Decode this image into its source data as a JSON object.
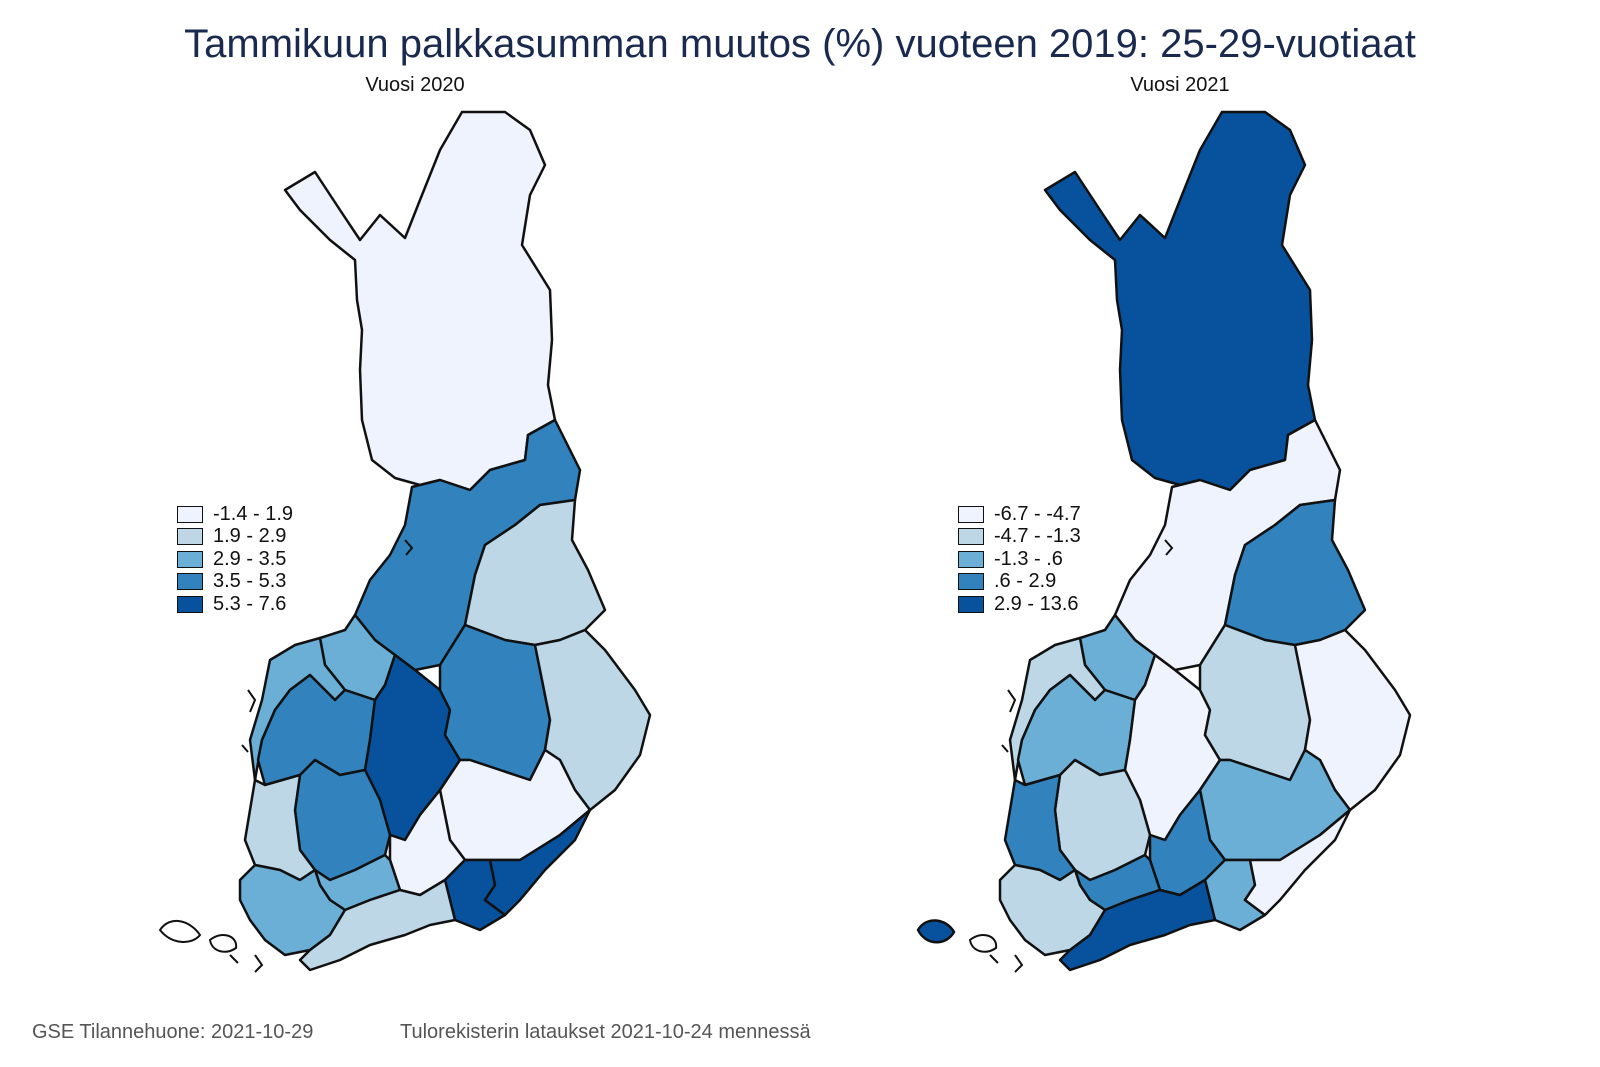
{
  "title": "Tammikuun palkkasumman muutos (%) vuoteen 2019: 25-29-vuotiaat",
  "maps": [
    {
      "subtitle": "Vuosi 2020",
      "legend": [
        {
          "label": "-1.4  -  1.9",
          "color": "#eff3fe"
        },
        {
          "label": "1.9  -  2.9",
          "color": "#bdd7e7"
        },
        {
          "label": "2.9  -  3.5",
          "color": "#6baed6"
        },
        {
          "label": "3.5  -  5.3",
          "color": "#3182bd"
        },
        {
          "label": "5.3  -  7.6",
          "color": "#08519c"
        }
      ]
    },
    {
      "subtitle": "Vuosi 2021",
      "legend": [
        {
          "label": "-6.7  -  -4.7",
          "color": "#eff3fe"
        },
        {
          "label": "-4.7  -  -1.3",
          "color": "#bdd7e7"
        },
        {
          "label": "-1.3  -  .6",
          "color": "#6baed6"
        },
        {
          "label": ".6  -  2.9",
          "color": "#3182bd"
        },
        {
          "label": "2.9  -  13.6",
          "color": "#08519c"
        }
      ]
    }
  ],
  "footer": {
    "source": "GSE Tilannehuone: 2021-10-29",
    "note": "Tulorekisterin lataukset 2021-10-24 mennessä"
  }
}
